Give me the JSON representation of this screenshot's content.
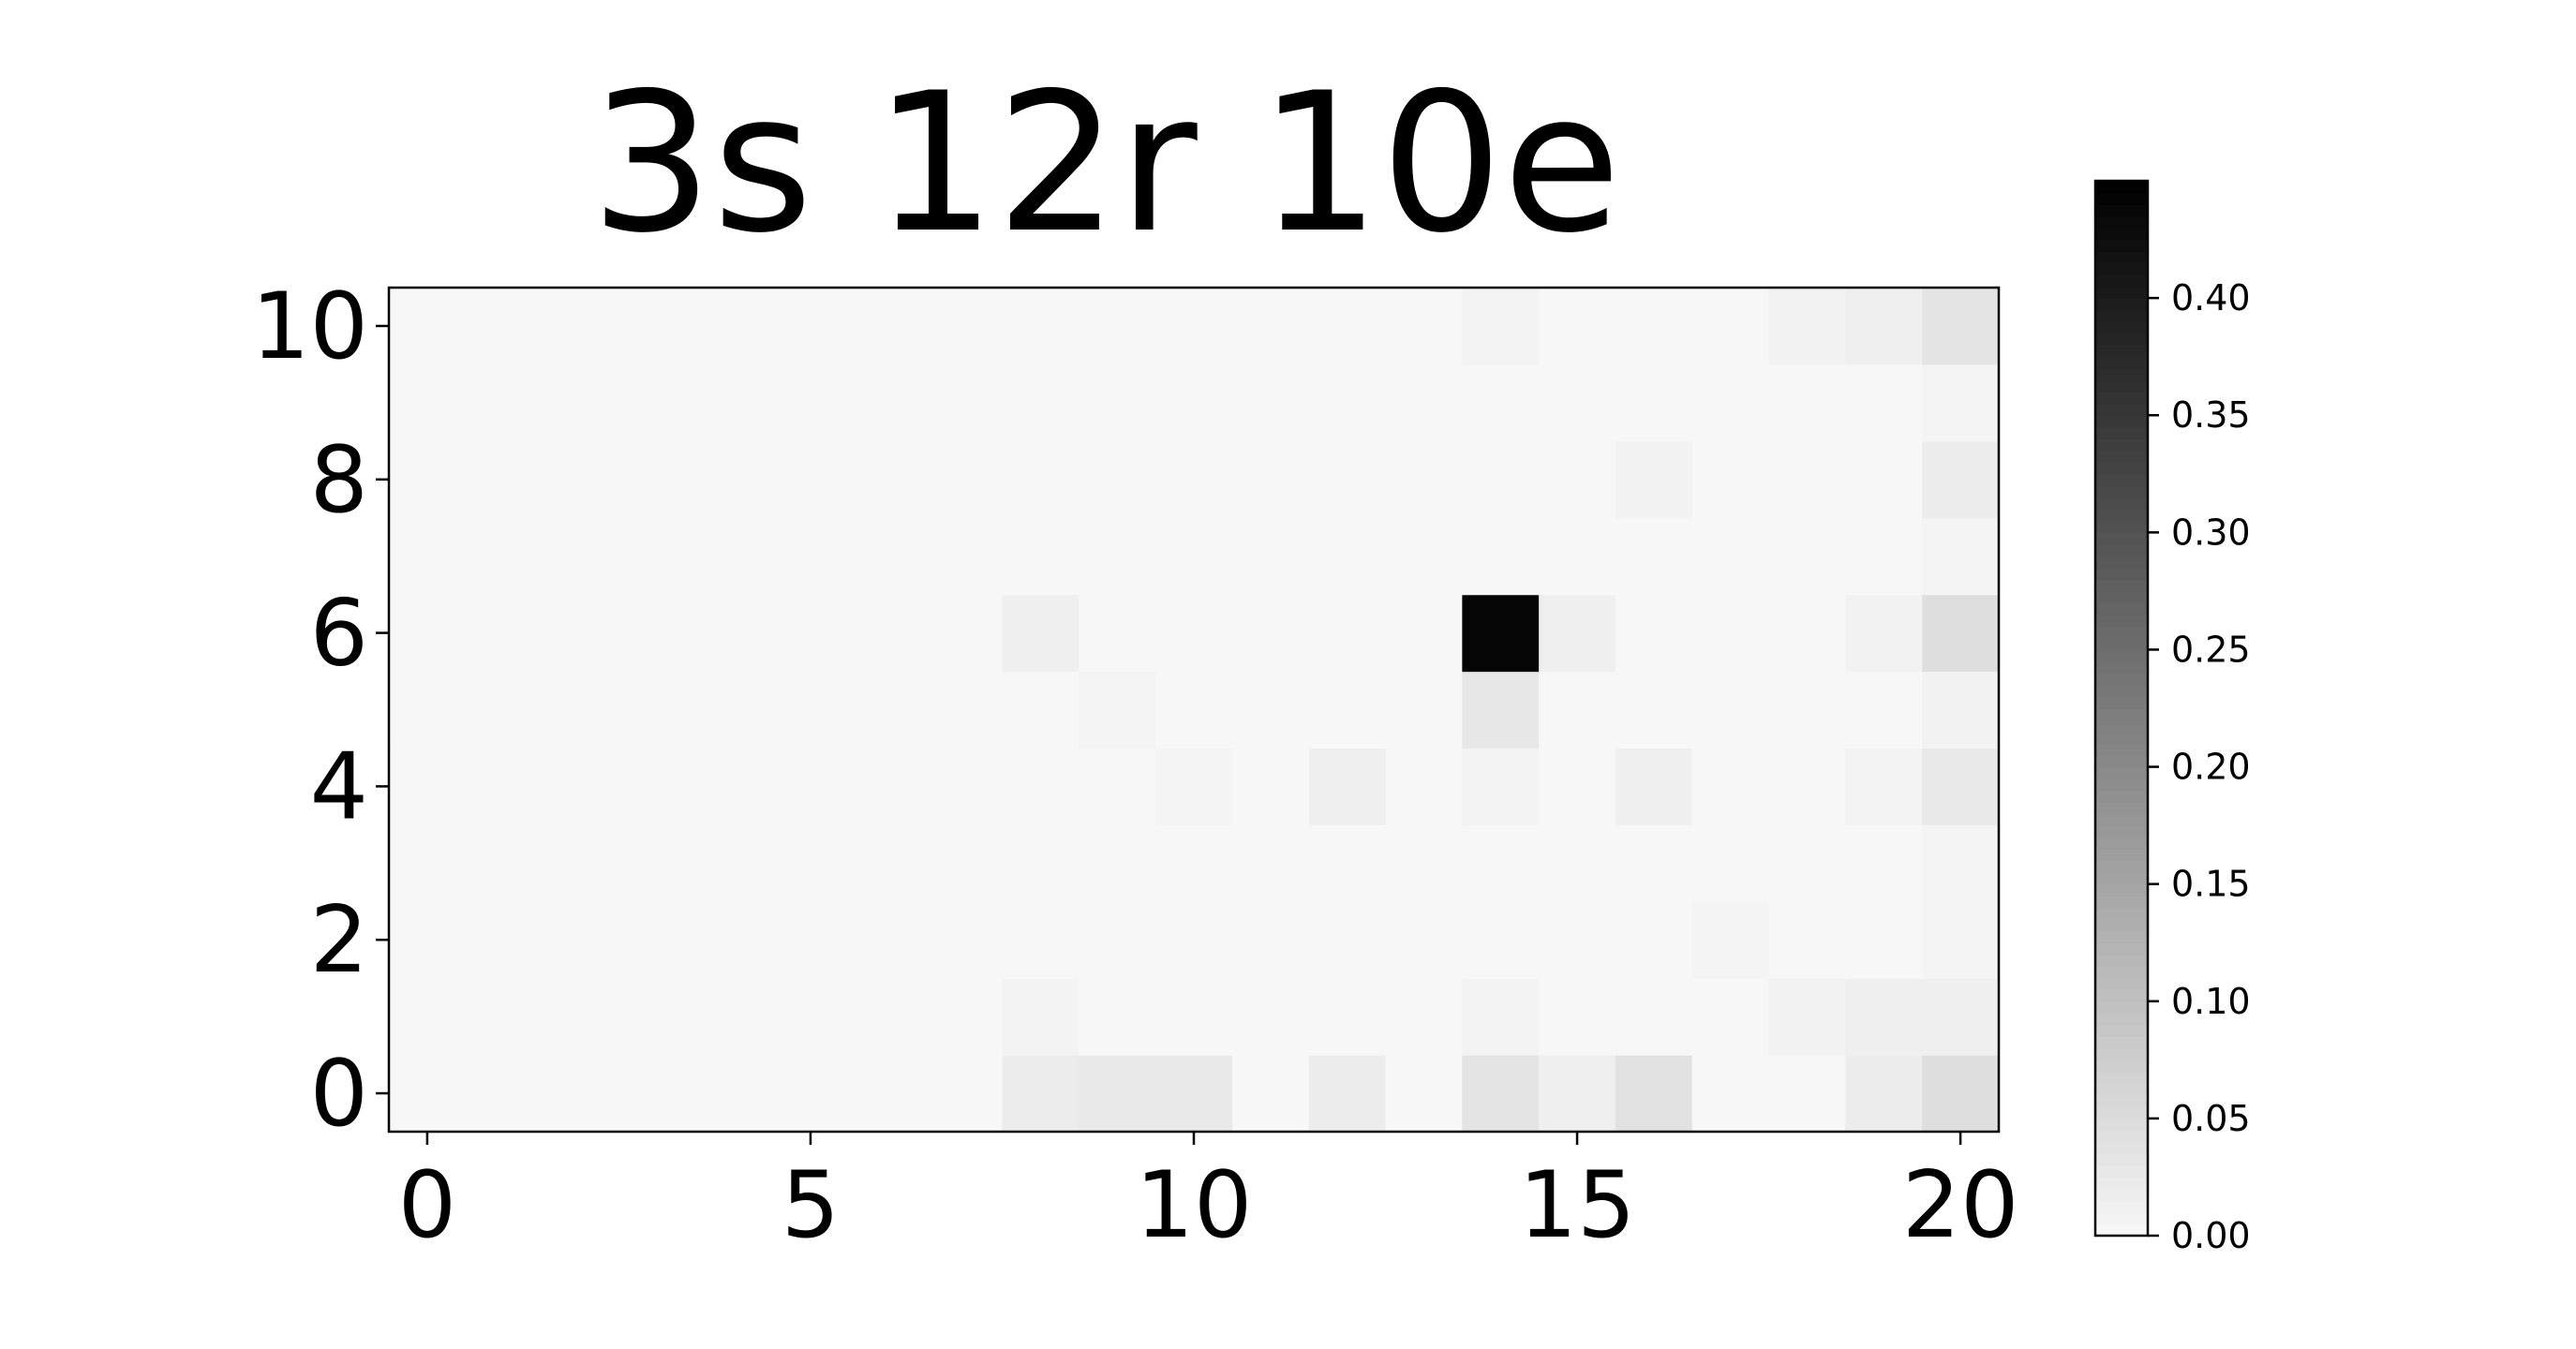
{
  "chart_data": {
    "type": "heatmap",
    "title": "3s 12r 10e",
    "xlabel": "",
    "ylabel": "",
    "x_range": [
      -0.5,
      20.5
    ],
    "y_range": [
      -0.5,
      10.5
    ],
    "x_ticks": [
      0,
      5,
      10,
      15,
      20
    ],
    "y_ticks": [
      0,
      2,
      4,
      6,
      8,
      10
    ],
    "colormap": "Greys",
    "color_min": 0.0,
    "color_max": 0.45,
    "colorbar_ticks": [
      "0.00",
      "0.05",
      "0.10",
      "0.15",
      "0.20",
      "0.25",
      "0.30",
      "0.35",
      "0.40"
    ],
    "colorbar_position": "right",
    "grid": false,
    "rows": [
      [
        0.0,
        0.0,
        0.0,
        0.0,
        0.0,
        0.0,
        0.0,
        0.0,
        0.02,
        0.025,
        0.025,
        0.0,
        0.02,
        0.0,
        0.035,
        0.015,
        0.04,
        0.0,
        0.0,
        0.02,
        0.045
      ],
      [
        0.0,
        0.0,
        0.0,
        0.0,
        0.0,
        0.0,
        0.0,
        0.0,
        0.008,
        0.0,
        0.0,
        0.0,
        0.0,
        0.0,
        0.008,
        0.0,
        0.0,
        0.0,
        0.01,
        0.015,
        0.015
      ],
      [
        0.0,
        0.0,
        0.0,
        0.0,
        0.0,
        0.0,
        0.0,
        0.0,
        0.0,
        0.0,
        0.0,
        0.0,
        0.0,
        0.0,
        0.0,
        0.0,
        0.0,
        0.005,
        0.0,
        0.0,
        0.005
      ],
      [
        0.0,
        0.0,
        0.0,
        0.0,
        0.0,
        0.0,
        0.0,
        0.0,
        0.0,
        0.0,
        0.0,
        0.0,
        0.0,
        0.0,
        0.0,
        0.0,
        0.0,
        0.0,
        0.0,
        0.0,
        0.005
      ],
      [
        0.0,
        0.0,
        0.0,
        0.0,
        0.0,
        0.0,
        0.0,
        0.0,
        0.0,
        0.0,
        0.005,
        0.0,
        0.015,
        0.0,
        0.008,
        0.0,
        0.015,
        0.0,
        0.0,
        0.008,
        0.025
      ],
      [
        0.0,
        0.0,
        0.0,
        0.0,
        0.0,
        0.0,
        0.0,
        0.0,
        0.0,
        0.005,
        0.0,
        0.0,
        0.0,
        0.0,
        0.03,
        0.0,
        0.0,
        0.0,
        0.0,
        0.0,
        0.01
      ],
      [
        0.0,
        0.0,
        0.0,
        0.0,
        0.0,
        0.0,
        0.0,
        0.0,
        0.015,
        0.0,
        0.0,
        0.0,
        0.0,
        0.0,
        0.44,
        0.015,
        0.0,
        0.0,
        0.0,
        0.01,
        0.045
      ],
      [
        0.0,
        0.0,
        0.0,
        0.0,
        0.0,
        0.0,
        0.0,
        0.0,
        0.0,
        0.0,
        0.0,
        0.0,
        0.0,
        0.0,
        0.0,
        0.0,
        0.0,
        0.0,
        0.0,
        0.0,
        0.005
      ],
      [
        0.0,
        0.0,
        0.0,
        0.0,
        0.0,
        0.0,
        0.0,
        0.0,
        0.0,
        0.0,
        0.0,
        0.0,
        0.0,
        0.0,
        0.0,
        0.0,
        0.01,
        0.0,
        0.0,
        0.0,
        0.02
      ],
      [
        0.0,
        0.0,
        0.0,
        0.0,
        0.0,
        0.0,
        0.0,
        0.0,
        0.0,
        0.0,
        0.0,
        0.0,
        0.0,
        0.0,
        0.0,
        0.0,
        0.0,
        0.0,
        0.0,
        0.0,
        0.005
      ],
      [
        0.0,
        0.0,
        0.0,
        0.0,
        0.0,
        0.0,
        0.0,
        0.0,
        0.0,
        0.0,
        0.0,
        0.0,
        0.0,
        0.0,
        0.008,
        0.0,
        0.0,
        0.0,
        0.01,
        0.015,
        0.035
      ]
    ]
  }
}
